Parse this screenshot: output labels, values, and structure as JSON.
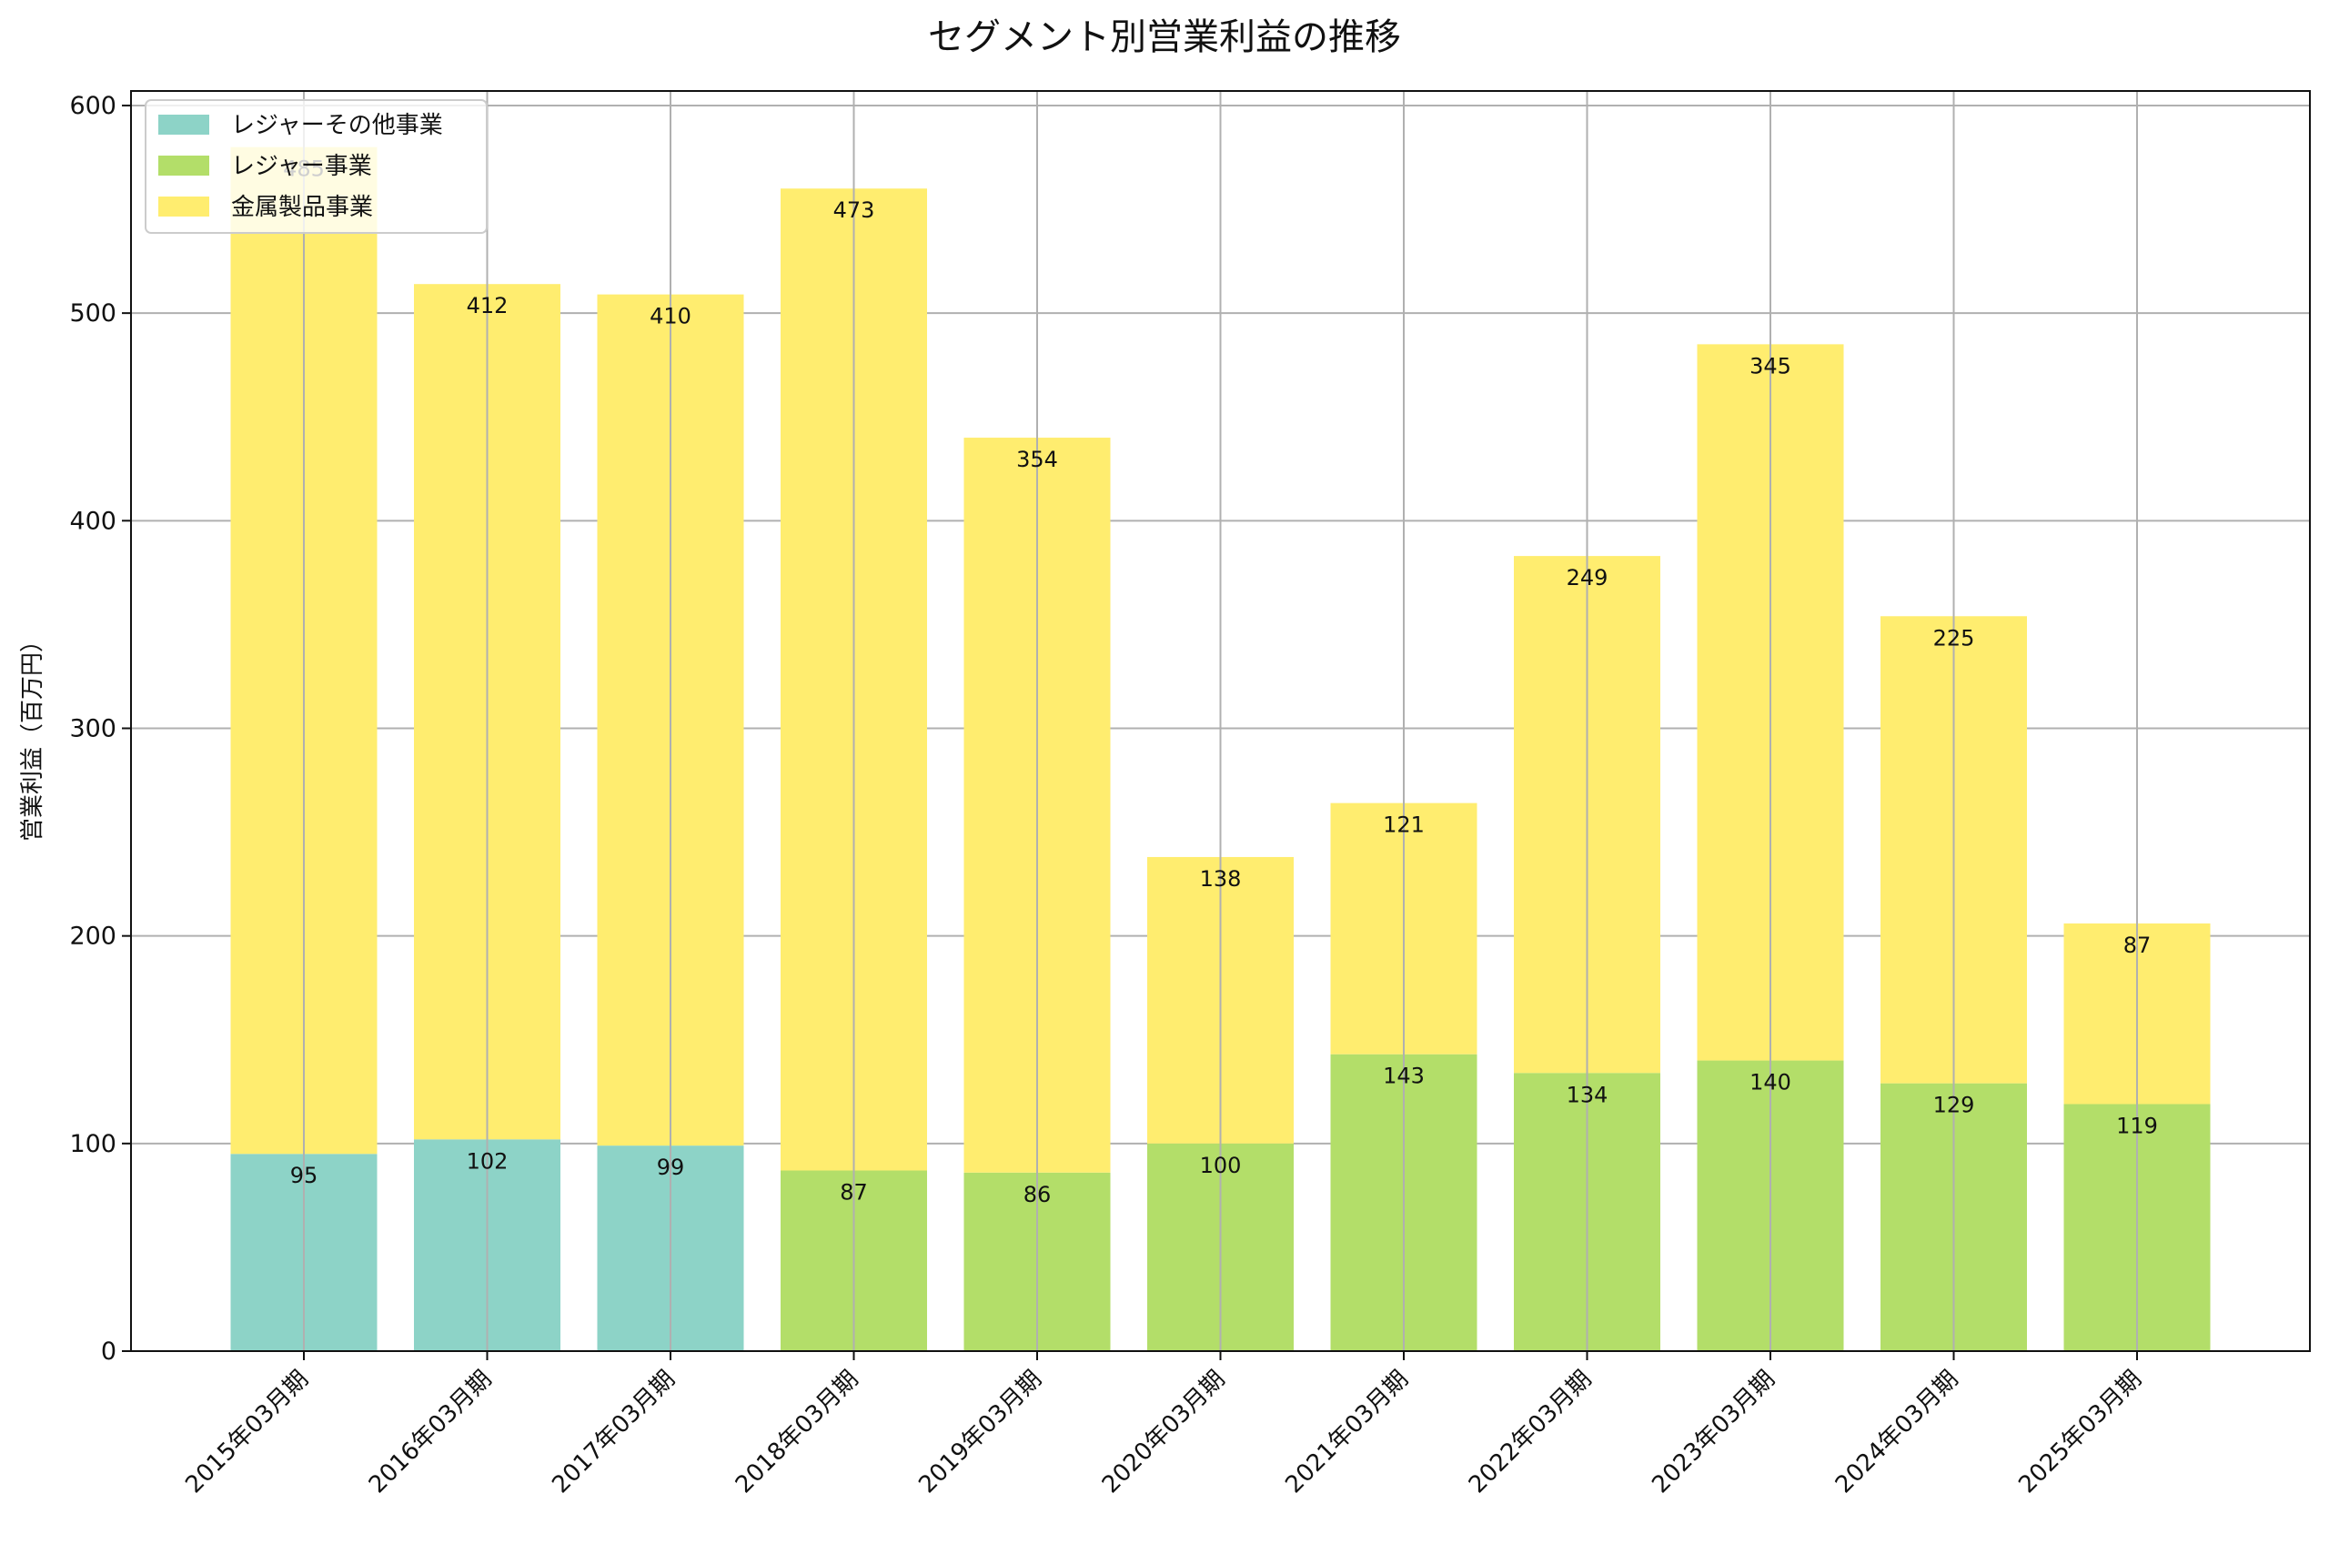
{
  "chart_data": {
    "type": "bar",
    "stacked": true,
    "title": "セグメント別営業利益の推移",
    "xlabel": "",
    "ylabel": "営業利益（百万円）",
    "ylim": [
      0,
      607
    ],
    "yticks": [
      0,
      100,
      200,
      300,
      400,
      500,
      600
    ],
    "grid": true,
    "legend_position": "top-left",
    "categories": [
      "2015年03月期",
      "2016年03月期",
      "2017年03月期",
      "2018年03月期",
      "2019年03月期",
      "2020年03月期",
      "2021年03月期",
      "2022年03月期",
      "2023年03月期",
      "2024年03月期",
      "2025年03月期"
    ],
    "series": [
      {
        "name": "レジャーその他事業",
        "color": "#8dd3c7",
        "values": [
          95,
          102,
          99,
          null,
          null,
          null,
          null,
          null,
          null,
          null,
          null
        ]
      },
      {
        "name": "レジャー事業",
        "color": "#b3de69",
        "values": [
          null,
          null,
          null,
          87,
          86,
          100,
          143,
          134,
          140,
          129,
          119
        ]
      },
      {
        "name": "金属製品事業",
        "color": "#ffed6f",
        "values": [
          485,
          412,
          410,
          473,
          354,
          138,
          121,
          249,
          345,
          225,
          87
        ]
      }
    ]
  }
}
